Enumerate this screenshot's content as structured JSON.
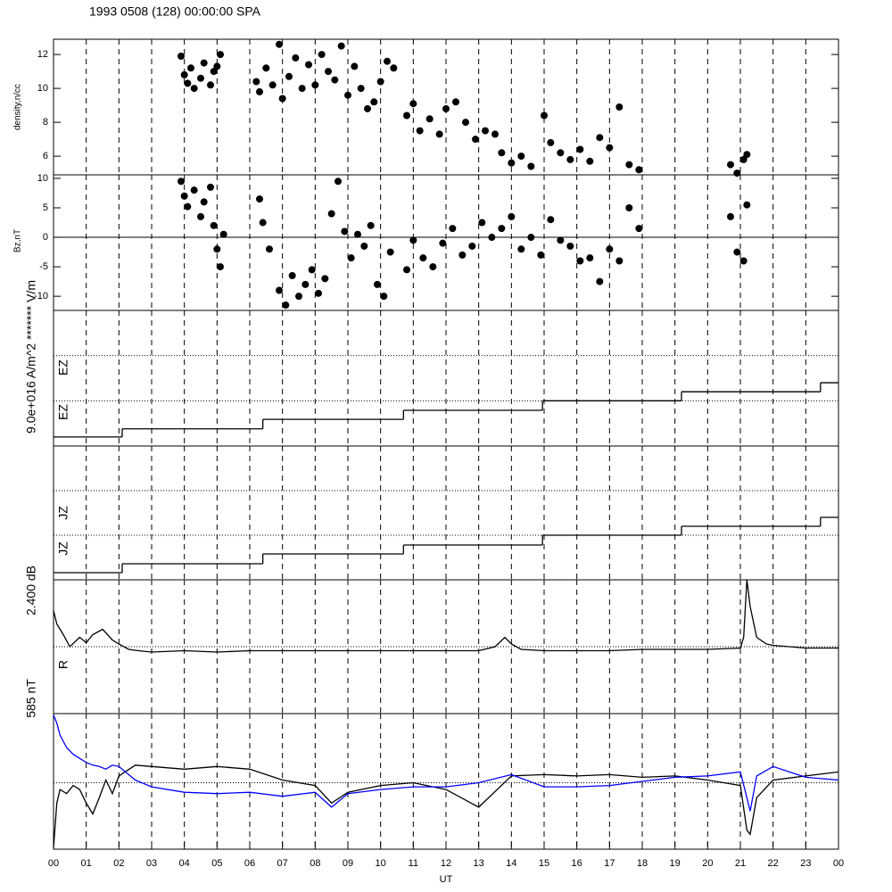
{
  "title": "1993 0508 (128) 00:00:00 SPA",
  "x_axis": {
    "label": "UT",
    "xlim": [
      0,
      24
    ],
    "xticks": [
      {
        "value": 0,
        "label": "00"
      },
      {
        "value": 1,
        "label": "01"
      },
      {
        "value": 2,
        "label": "02"
      },
      {
        "value": 3,
        "label": "03"
      },
      {
        "value": 4,
        "label": "04"
      },
      {
        "value": 5,
        "label": "05"
      },
      {
        "value": 6,
        "label": "06"
      },
      {
        "value": 7,
        "label": "07"
      },
      {
        "value": 8,
        "label": "08"
      },
      {
        "value": 9,
        "label": "09"
      },
      {
        "value": 10,
        "label": "10"
      },
      {
        "value": 11,
        "label": "11"
      },
      {
        "value": 12,
        "label": "12"
      },
      {
        "value": 13,
        "label": "13"
      },
      {
        "value": 14,
        "label": "14"
      },
      {
        "value": 15,
        "label": "15"
      },
      {
        "value": 16,
        "label": "16"
      },
      {
        "value": 17,
        "label": "17"
      },
      {
        "value": 18,
        "label": "18"
      },
      {
        "value": 19,
        "label": "19"
      },
      {
        "value": 20,
        "label": "20"
      },
      {
        "value": 21,
        "label": "21"
      },
      {
        "value": 22,
        "label": "22"
      },
      {
        "value": 23,
        "label": "23"
      },
      {
        "value": 24,
        "label": "00"
      }
    ]
  },
  "chart_data": [
    {
      "type": "scatter",
      "ylabel": "density,n/cc",
      "ylim": [
        4.9,
        12.9
      ],
      "yticks": [
        6,
        8,
        10,
        12
      ],
      "color": "#000000",
      "x": [
        3.9,
        4.0,
        4.1,
        4.2,
        4.3,
        4.5,
        4.6,
        4.8,
        4.9,
        5.0,
        5.1,
        6.2,
        6.3,
        6.5,
        6.7,
        6.9,
        7.0,
        7.2,
        7.4,
        7.6,
        7.8,
        8.0,
        8.2,
        8.4,
        8.6,
        8.8,
        9.0,
        9.2,
        9.4,
        9.6,
        9.8,
        10.0,
        10.2,
        10.4,
        10.8,
        11.0,
        11.2,
        11.5,
        11.8,
        12.0,
        12.3,
        12.6,
        12.9,
        13.2,
        13.5,
        13.7,
        14.0,
        14.3,
        14.6,
        15.0,
        15.2,
        15.5,
        15.8,
        16.1,
        16.4,
        16.7,
        17.0,
        17.3,
        17.6,
        17.9,
        20.7,
        20.9,
        21.1,
        21.2
      ],
      "values": [
        11.9,
        10.8,
        10.3,
        11.2,
        10.0,
        10.6,
        11.5,
        10.2,
        11.0,
        11.3,
        12.0,
        10.4,
        9.8,
        11.2,
        10.2,
        12.6,
        9.4,
        10.7,
        11.8,
        10.0,
        11.4,
        10.2,
        12.0,
        11.0,
        10.5,
        12.5,
        9.6,
        11.3,
        10.0,
        8.8,
        9.2,
        10.4,
        11.6,
        11.2,
        8.4,
        9.1,
        7.5,
        8.2,
        7.3,
        8.8,
        9.2,
        8.0,
        7.0,
        7.5,
        7.3,
        6.2,
        5.6,
        6.0,
        5.4,
        8.4,
        6.8,
        6.2,
        5.8,
        6.4,
        5.7,
        7.1,
        6.5,
        8.9,
        5.5,
        5.2,
        5.5,
        5.0,
        5.8,
        6.1
      ]
    },
    {
      "type": "scatter",
      "ylabel": "Bz,nT",
      "ylim": [
        -12.4,
        10.6
      ],
      "yticks": [
        -10,
        -5,
        0,
        5,
        10
      ],
      "reference_line": 0,
      "color": "#000000",
      "x": [
        3.9,
        4.0,
        4.1,
        4.3,
        4.5,
        4.6,
        4.8,
        4.9,
        5.0,
        5.1,
        5.2,
        6.3,
        6.4,
        6.6,
        6.9,
        7.1,
        7.3,
        7.5,
        7.7,
        7.9,
        8.1,
        8.3,
        8.5,
        8.7,
        8.9,
        9.1,
        9.3,
        9.5,
        9.7,
        9.9,
        10.1,
        10.3,
        10.8,
        11.0,
        11.3,
        11.6,
        11.9,
        12.2,
        12.5,
        12.8,
        13.1,
        13.4,
        13.7,
        14.0,
        14.3,
        14.6,
        14.9,
        15.2,
        15.5,
        15.8,
        16.1,
        16.4,
        16.7,
        17.0,
        17.3,
        17.6,
        17.9,
        20.7,
        20.9,
        21.1,
        21.2
      ],
      "values": [
        9.5,
        7.0,
        5.2,
        8.0,
        3.5,
        6.0,
        8.5,
        2.0,
        -2.0,
        -5.0,
        0.5,
        6.5,
        2.5,
        -2.0,
        -9.0,
        -11.5,
        -6.5,
        -10.0,
        -8.0,
        -5.5,
        -9.5,
        -7.0,
        4.0,
        9.5,
        1.0,
        -3.5,
        0.5,
        -1.5,
        2.0,
        -8.0,
        -10.0,
        -2.5,
        -5.5,
        -0.5,
        -3.5,
        -5.0,
        -1.0,
        1.5,
        -3.0,
        -1.5,
        2.5,
        0.0,
        1.5,
        3.5,
        -2.0,
        0.0,
        -3.0,
        3.0,
        -0.5,
        -1.5,
        -4.0,
        -3.5,
        -7.5,
        -2.0,
        -4.0,
        5.0,
        1.5,
        3.5,
        -2.5,
        -4.0,
        5.5
      ]
    },
    {
      "type": "step",
      "ylabel": "9.0e+016 A/m^2  ******* V/m",
      "labels": [
        "EZ",
        "EZ"
      ],
      "ylim": [
        0,
        3
      ],
      "hlines": [
        1,
        2
      ],
      "color": "#000000",
      "x": [
        0,
        2.1,
        6.4,
        10.7,
        14.95,
        19.2,
        23.45
      ],
      "values": [
        0.2,
        0.38,
        0.59,
        0.79,
        1.0,
        1.2,
        1.4
      ]
    },
    {
      "type": "step",
      "ylabel": "2.400 dB",
      "labels": [
        "JZ",
        "JZ"
      ],
      "ylim": [
        0,
        3
      ],
      "hlines": [
        1,
        2
      ],
      "color": "#000000",
      "x": [
        0,
        2.1,
        6.4,
        10.7,
        14.95,
        19.2,
        23.45
      ],
      "values": [
        0.16,
        0.36,
        0.58,
        0.78,
        1.0,
        1.2,
        1.4
      ]
    },
    {
      "type": "line",
      "ylabel": "585 nT",
      "labels": [
        "R"
      ],
      "ylim": [
        0,
        100
      ],
      "hlines": [
        50
      ],
      "x": [
        0,
        0.1,
        0.3,
        0.5,
        0.8,
        1.0,
        1.2,
        1.5,
        1.8,
        2.0,
        2.3,
        2.6,
        3,
        4,
        5,
        6,
        7,
        8,
        9,
        10,
        11,
        12,
        13,
        13.5,
        13.8,
        14,
        14.3,
        15,
        16,
        17,
        18,
        19,
        20,
        21,
        21.1,
        21.2,
        21.3,
        21.5,
        21.8,
        22,
        23,
        24
      ],
      "series": [
        {
          "color": "#000000",
          "values": [
            77,
            67,
            59,
            50,
            57,
            53,
            59,
            63,
            55,
            52,
            48,
            47,
            46,
            47,
            46,
            47,
            47,
            47,
            47,
            47,
            47,
            47,
            47,
            50,
            57,
            52,
            48,
            47,
            47,
            47,
            48,
            48,
            48,
            49,
            57,
            100,
            80,
            57,
            52,
            51,
            49,
            49
          ]
        }
      ]
    },
    {
      "type": "line",
      "ylim": [
        0,
        100
      ],
      "hlines": [
        49
      ],
      "x": [
        0,
        0.1,
        0.2,
        0.4,
        0.6,
        0.8,
        1.0,
        1.2,
        1.4,
        1.6,
        1.8,
        2.0,
        2.5,
        3,
        4,
        5,
        6,
        7,
        8,
        8.5,
        9,
        10,
        11,
        12,
        13,
        14,
        15,
        16,
        17,
        18,
        19,
        20,
        21,
        21.2,
        21.3,
        21.5,
        22,
        23,
        24
      ],
      "series": [
        {
          "color": "#000000",
          "values": [
            1,
            34,
            44,
            41,
            47,
            44,
            34,
            26,
            38,
            51,
            41,
            54,
            62,
            61,
            59,
            61,
            59,
            51,
            47,
            34,
            42,
            47,
            49,
            44,
            31,
            54,
            55,
            54,
            55,
            53,
            54,
            51,
            47,
            14,
            11,
            38,
            51,
            54,
            57
          ]
        },
        {
          "color": "#0000ff",
          "values": [
            99,
            93,
            84,
            75,
            70,
            67,
            64,
            62,
            61,
            59,
            62,
            61,
            51,
            46,
            42,
            41,
            42,
            39,
            42,
            31,
            41,
            44,
            46,
            46,
            49,
            55,
            46,
            46,
            47,
            50,
            53,
            54,
            57,
            38,
            28,
            54,
            61,
            53,
            51
          ]
        }
      ]
    }
  ]
}
